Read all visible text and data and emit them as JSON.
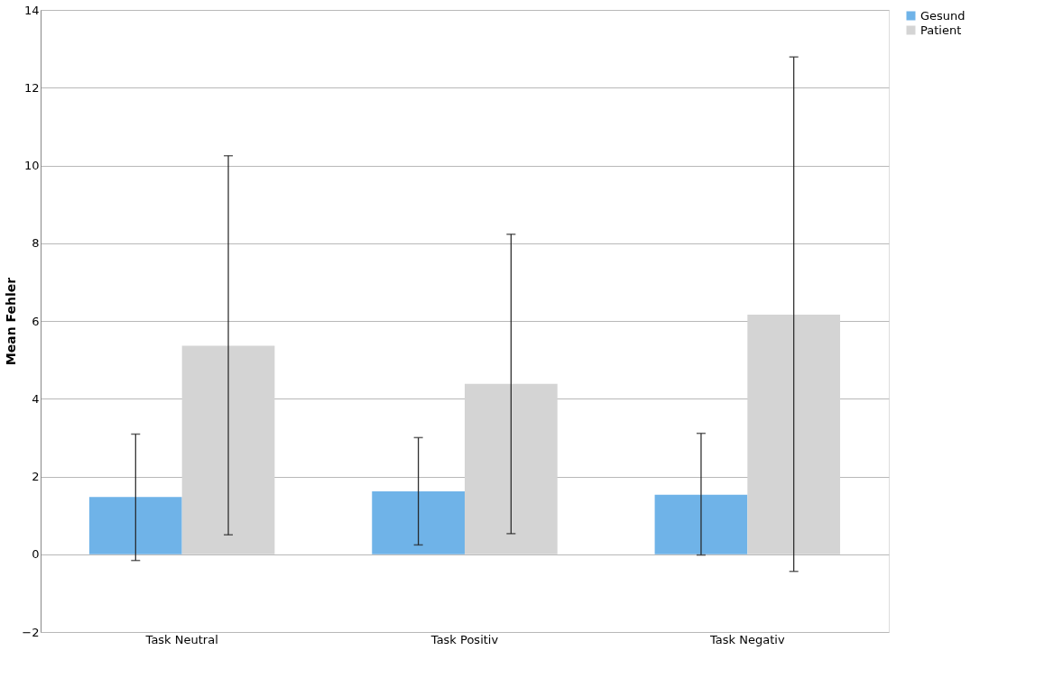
{
  "chart_data": {
    "type": "bar",
    "ylabel": "Mean Fehler",
    "categories": [
      "Task Neutral",
      "Task Positiv",
      "Task Negativ"
    ],
    "series": [
      {
        "name": "Gesund",
        "color": "#6fb3e8",
        "values": [
          1.47,
          1.62,
          1.53
        ],
        "errors": [
          [
            -0.16,
            3.09
          ],
          [
            0.24,
            3.0
          ],
          [
            -0.02,
            3.11
          ]
        ]
      },
      {
        "name": "Patient",
        "color": "#d4d4d4",
        "values": [
          5.36,
          4.38,
          6.16
        ],
        "errors": [
          [
            0.5,
            10.25
          ],
          [
            0.53,
            8.23
          ],
          [
            -0.44,
            12.79
          ]
        ]
      }
    ],
    "ylim": [
      -2,
      14
    ],
    "yticks": [
      -2,
      0,
      2,
      4,
      6,
      8,
      10,
      12,
      14
    ],
    "grid": "y",
    "legend": "right"
  }
}
